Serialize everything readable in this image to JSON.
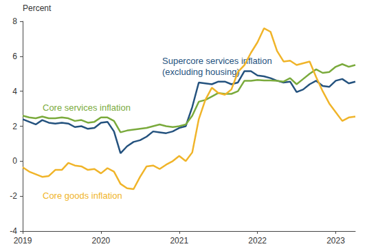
{
  "chart_data": {
    "type": "line",
    "y_label": "Percent",
    "categories": [
      "2019",
      null,
      null,
      null,
      null,
      null,
      null,
      null,
      null,
      null,
      null,
      null,
      "2020",
      null,
      null,
      null,
      null,
      null,
      null,
      null,
      null,
      null,
      null,
      null,
      "2021",
      null,
      null,
      null,
      null,
      null,
      null,
      null,
      null,
      null,
      null,
      null,
      "2022",
      null,
      null,
      null,
      null,
      null,
      null,
      null,
      null,
      null,
      null,
      null,
      "2023",
      null,
      null,
      null
    ],
    "series": [
      {
        "name": "Supercore services inflation\n(excluding housing)",
        "color": "#24527e",
        "values": [
          2.4,
          2.25,
          2.1,
          2.35,
          2.2,
          2.15,
          2.2,
          2.15,
          1.95,
          2.0,
          1.85,
          1.9,
          2.2,
          2.25,
          1.7,
          0.45,
          0.85,
          1.1,
          1.2,
          1.4,
          1.7,
          1.65,
          1.6,
          1.7,
          1.9,
          2.0,
          3.1,
          4.5,
          4.45,
          4.4,
          4.55,
          4.55,
          4.4,
          4.5,
          5.15,
          5.15,
          4.9,
          4.85,
          4.75,
          4.6,
          4.5,
          4.55,
          3.95,
          4.1,
          4.4,
          4.6,
          4.3,
          4.25,
          4.6,
          4.7,
          4.45,
          4.55
        ]
      },
      {
        "name": "Core services inflation",
        "color": "#7aaa3c",
        "values": [
          2.6,
          2.5,
          2.45,
          2.55,
          2.45,
          2.45,
          2.5,
          2.45,
          2.3,
          2.35,
          2.2,
          2.25,
          2.5,
          2.5,
          2.3,
          1.65,
          1.75,
          1.8,
          1.85,
          1.9,
          2.0,
          2.1,
          2.0,
          1.95,
          2.0,
          2.1,
          2.6,
          3.4,
          3.5,
          3.7,
          3.9,
          3.85,
          3.85,
          4.0,
          4.6,
          4.6,
          4.65,
          4.62,
          4.62,
          4.6,
          4.55,
          4.75,
          4.4,
          4.7,
          5.0,
          5.25,
          5.05,
          5.1,
          5.4,
          5.55,
          5.4,
          5.5
        ]
      },
      {
        "name": "Core goods inflation",
        "color": "#f0b429",
        "values": [
          -0.35,
          -0.6,
          -0.75,
          -0.9,
          -0.85,
          -0.5,
          -0.5,
          -0.1,
          -0.25,
          -0.3,
          -0.5,
          -0.45,
          -0.7,
          -0.4,
          -0.6,
          -1.3,
          -1.55,
          -1.6,
          -0.9,
          -0.3,
          -0.25,
          -0.45,
          -0.2,
          0.0,
          0.3,
          0.0,
          0.5,
          2.4,
          3.5,
          4.2,
          3.9,
          3.8,
          4.1,
          5.1,
          5.5,
          6.2,
          6.8,
          7.6,
          7.4,
          6.3,
          5.7,
          5.75,
          5.5,
          5.6,
          5.7,
          4.8,
          4.0,
          3.3,
          2.8,
          2.3,
          2.5,
          2.55
        ]
      }
    ],
    "ylim": [
      -4,
      8
    ],
    "yticks": [
      -4,
      -2,
      0,
      2,
      4,
      6,
      8
    ],
    "grid": false
  }
}
